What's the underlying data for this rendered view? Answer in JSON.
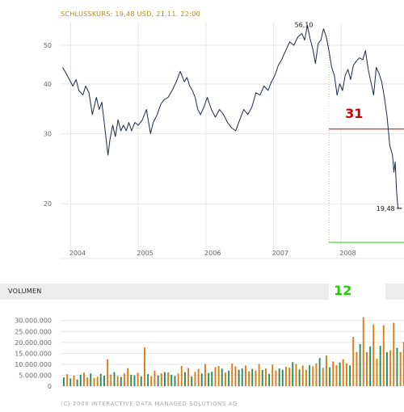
{
  "header": {
    "close_caption": "SCHLUSSKURS: 19,48 USD, 21.11. 22:00"
  },
  "volume_section": {
    "title": "VOLUMEN"
  },
  "footer": {
    "copyright": "(C) 2008 INTERACTIVE DATA MANAGED SOLUTIONS AG"
  },
  "colors": {
    "background": "#ffffff",
    "line": "#1b2a4a",
    "grid": "#e6e6e6",
    "red_level": "#cc0000",
    "green_level": "#22cc00",
    "volume_orange": "#e07b12",
    "volume_green": "#2a8a5a",
    "caption_gold": "#b58a18",
    "tick": "#666666"
  },
  "chart_data": [
    {
      "type": "line",
      "title": "",
      "xlabel": "",
      "ylabel": "",
      "x_ticks": [
        "2004",
        "2005",
        "2006",
        "2007",
        "2008"
      ],
      "y_ticks": [
        "20",
        "30",
        "40",
        "50"
      ],
      "ylim": [
        16,
        57
      ],
      "xlim": [
        2003.85,
        2008.93
      ],
      "scale": "log",
      "grid": true,
      "annotations": [
        {
          "text": "56,10",
          "x": 2007.52,
          "y": 56.1
        },
        {
          "text": "19,48",
          "x": 2008.89,
          "y": 19.48
        }
      ],
      "level_labels": [
        {
          "text": "31",
          "y": 30.8
        },
        {
          "text": "12",
          "y": 12.0
        }
      ],
      "levels": [
        {
          "name": "31",
          "value": 30.8,
          "color": "#cc0000"
        },
        {
          "name": "12",
          "value": 12.0,
          "color": "#22cc00"
        }
      ],
      "series": [
        {
          "x": [
            2003.88,
            2003.93,
            2003.98,
            2004.03,
            2004.08,
            2004.12,
            2004.18,
            2004.22,
            2004.27,
            2004.32,
            2004.38,
            2004.42,
            2004.46,
            2004.5,
            2004.55,
            2004.58,
            2004.62,
            2004.66,
            2004.7,
            2004.74,
            2004.78,
            2004.82,
            2004.86,
            2004.9,
            2004.95,
            2005.0,
            2005.06,
            2005.12,
            2005.18,
            2005.22,
            2005.28,
            2005.33,
            2005.38,
            2005.44,
            2005.5,
            2005.56,
            2005.62,
            2005.68,
            2005.72,
            2005.76,
            2005.8,
            2005.84,
            2005.88,
            2005.92,
            2005.97,
            2006.02,
            2006.08,
            2006.14,
            2006.2,
            2006.26,
            2006.32,
            2006.38,
            2006.44,
            2006.5,
            2006.56,
            2006.62,
            2006.68,
            2006.74,
            2006.8,
            2006.86,
            2006.92,
            2006.97,
            2007.02,
            2007.07,
            2007.12,
            2007.18,
            2007.24,
            2007.3,
            2007.36,
            2007.42,
            2007.46,
            2007.5,
            2007.54,
            2007.58,
            2007.62,
            2007.66,
            2007.7,
            2007.74,
            2007.78,
            2007.82,
            2007.86,
            2007.9,
            2007.94,
            2007.98,
            2008.02,
            2008.06,
            2008.1,
            2008.14,
            2008.18,
            2008.22,
            2008.27,
            2008.32,
            2008.36,
            2008.4,
            2008.44,
            2008.48,
            2008.52,
            2008.56,
            2008.6,
            2008.64,
            2008.68,
            2008.72,
            2008.76,
            2008.78,
            2008.8,
            2008.82,
            2008.84,
            2008.86,
            2008.88,
            2008.9
          ],
          "y": [
            44.0,
            42.5,
            41.0,
            39.5,
            41.0,
            38.5,
            37.5,
            39.5,
            38.0,
            33.5,
            37.0,
            34.5,
            36.0,
            31.5,
            26.5,
            29.0,
            31.5,
            29.5,
            32.5,
            30.5,
            31.5,
            30.5,
            32.0,
            30.5,
            32.0,
            31.5,
            32.5,
            34.5,
            30.0,
            32.0,
            33.5,
            35.5,
            36.5,
            37.0,
            38.5,
            40.5,
            43.0,
            40.5,
            41.5,
            39.5,
            38.5,
            37.0,
            34.5,
            33.5,
            35.0,
            37.0,
            34.5,
            33.0,
            34.5,
            33.5,
            32.0,
            31.0,
            30.5,
            32.5,
            34.5,
            33.5,
            35.0,
            38.0,
            37.5,
            39.5,
            38.5,
            40.5,
            42.0,
            44.5,
            46.0,
            48.5,
            51.0,
            50.0,
            52.5,
            53.5,
            51.5,
            56.1,
            52.0,
            49.0,
            45.0,
            50.5,
            51.5,
            55.0,
            52.5,
            48.5,
            44.0,
            42.0,
            37.5,
            40.0,
            38.5,
            42.0,
            43.5,
            41.0,
            44.5,
            45.5,
            46.5,
            46.0,
            48.5,
            43.5,
            40.5,
            37.5,
            44.0,
            42.5,
            40.5,
            37.0,
            33.0,
            28.0,
            26.5,
            24.0,
            25.5,
            21.5,
            19.5,
            19.48,
            19.48,
            19.48
          ]
        }
      ]
    },
    {
      "type": "bar",
      "title": "",
      "y_ticks": [
        "0",
        "5.000.000",
        "10.000.000",
        "15.000.000",
        "20.000.000",
        "25.000.000",
        "30.000.000"
      ],
      "ylim": [
        0,
        31000000
      ],
      "x_first": 2003.88,
      "x_step": 0.04,
      "series": [
        {
          "values": [
            4000000,
            5500000,
            3500000,
            4800000,
            3000000,
            5200000,
            6200000,
            4000000,
            5800000,
            3800000,
            4300000,
            5600000,
            4800000,
            12200000,
            5300000,
            6400000,
            4700000,
            4200000,
            5800000,
            8200000,
            5200000,
            5000000,
            6100000,
            4500000,
            17700000,
            5500000,
            4600000,
            7100000,
            4900000,
            5900000,
            6400000,
            6300000,
            5200000,
            4700000,
            5800000,
            9200000,
            6400000,
            8300000,
            4400000,
            6500000,
            7900000,
            5800000,
            10200000,
            6000000,
            6600000,
            8700000,
            9200000,
            8000000,
            6200000,
            7100000,
            10300000,
            9000000,
            7500000,
            8100000,
            9400000,
            6800000,
            7900000,
            7200000,
            10100000,
            7400000,
            8100000,
            5600000,
            9900000,
            7200000,
            8100000,
            7500000,
            8900000,
            8400000,
            11000000,
            10200000,
            7600000,
            9400000,
            7500000,
            9600000,
            9100000,
            10400000,
            12800000,
            8400000,
            14000000,
            8600000,
            11300000,
            9600000,
            10800000,
            12300000,
            10400000,
            9500000,
            22500000,
            15600000,
            19200000,
            31500000,
            15500000,
            18200000,
            28200000,
            12500000,
            18400000,
            27800000,
            15500000,
            16400000,
            29000000,
            17500000,
            15600000,
            20300000
          ],
          "colors": [
            "g",
            "o",
            "g",
            "o",
            "g",
            "g",
            "o",
            "o",
            "g",
            "o",
            "o",
            "g",
            "g",
            "o",
            "o",
            "g",
            "o",
            "g",
            "o",
            "o",
            "g",
            "g",
            "o",
            "g",
            "o",
            "g",
            "o",
            "o",
            "g",
            "o",
            "g",
            "o",
            "g",
            "g",
            "o",
            "o",
            "g",
            "o",
            "g",
            "o",
            "o",
            "g",
            "o",
            "g",
            "g",
            "o",
            "o",
            "g",
            "o",
            "g",
            "o",
            "o",
            "g",
            "g",
            "o",
            "o",
            "g",
            "o",
            "o",
            "g",
            "o",
            "g",
            "o",
            "o",
            "g",
            "g",
            "o",
            "o",
            "g",
            "o",
            "g",
            "o",
            "o",
            "g",
            "o",
            "o",
            "g",
            "o",
            "o",
            "g",
            "o",
            "o",
            "g",
            "o",
            "o",
            "g",
            "o",
            "o",
            "g",
            "o",
            "o",
            "g",
            "o",
            "o",
            "g",
            "o",
            "g",
            "o",
            "o",
            "g",
            "o",
            "o"
          ]
        }
      ]
    }
  ]
}
